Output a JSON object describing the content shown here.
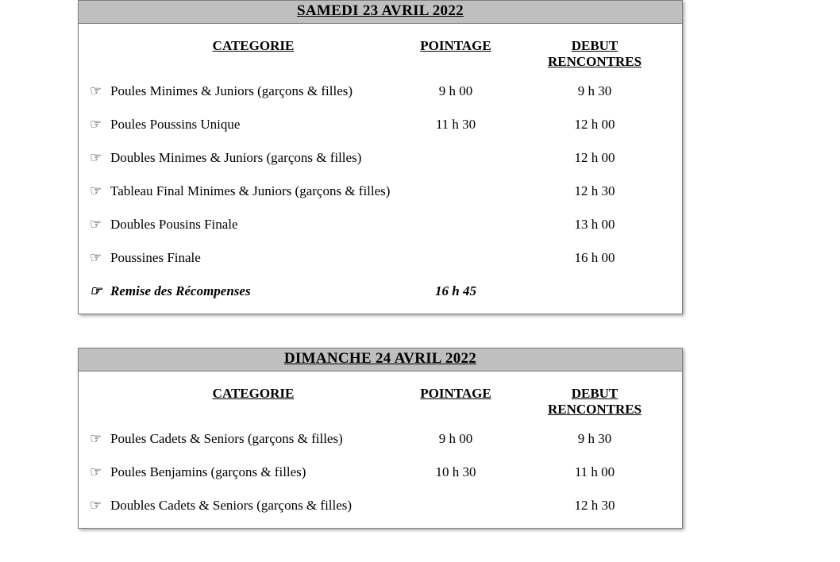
{
  "days": [
    {
      "title": "SAMEDI 23 AVRIL 2022",
      "headers": {
        "cat": "CATEGORIE",
        "point": "POINTAGE",
        "debut_l1": "DEBUT",
        "debut_l2": "RENCONTRES"
      },
      "rows": [
        {
          "hand": "☞",
          "cat": "Poules Minimes & Juniors (garçons & filles)",
          "point": "9 h 00",
          "debut": "9 h 30",
          "italic": false
        },
        {
          "hand": "☞",
          "cat": "Poules Poussins Unique",
          "point": "11 h 30",
          "debut": "12 h 00",
          "italic": false
        },
        {
          "hand": "☞",
          "cat": "Doubles Minimes & Juniors (garçons & filles)",
          "point": "",
          "debut": "12 h 00",
          "italic": false
        },
        {
          "hand": "☞",
          "cat": "Tableau Final Minimes & Juniors (garçons & filles)",
          "point": "",
          "debut": "12 h 30",
          "italic": false
        },
        {
          "hand": "☞",
          "cat": "Doubles Pousins Finale",
          "point": "",
          "debut": "13 h 00",
          "italic": false
        },
        {
          "hand": "☞",
          "cat": "Poussines Finale",
          "point": "",
          "debut": "16 h 00",
          "italic": false
        },
        {
          "hand": "☞",
          "cat": "Remise des Récompenses",
          "point": "16 h 45",
          "debut": "",
          "italic": true
        }
      ]
    },
    {
      "title": "DIMANCHE 24 AVRIL 2022",
      "headers": {
        "cat": "CATEGORIE",
        "point": "POINTAGE",
        "debut_l1": "DEBUT",
        "debut_l2": "RENCONTRES"
      },
      "rows": [
        {
          "hand": "☞",
          "cat": "Poules Cadets & Seniors (garçons & filles)",
          "point": "9 h 00",
          "debut": "9 h 30",
          "italic": false
        },
        {
          "hand": "☞",
          "cat": "Poules Benjamins (garçons & filles)",
          "point": "10 h 30",
          "debut": "11 h 00",
          "italic": false
        },
        {
          "hand": "☞",
          "cat": "Doubles Cadets & Seniors (garçons & filles)",
          "point": "",
          "debut": "12 h 30",
          "italic": false
        }
      ]
    }
  ]
}
